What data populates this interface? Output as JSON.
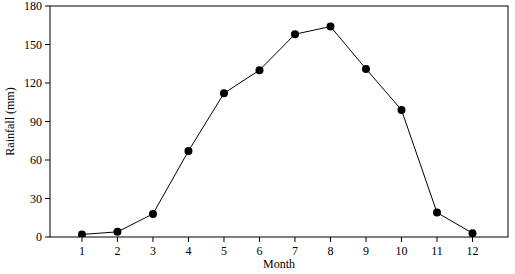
{
  "chart_data": {
    "type": "line",
    "x_label": "Month",
    "y_label": "Rainfall (mm)",
    "x": [
      1,
      2,
      3,
      4,
      5,
      6,
      7,
      8,
      9,
      10,
      11,
      12
    ],
    "values": [
      2,
      4,
      18,
      67,
      112,
      130,
      158,
      164,
      131,
      99,
      19,
      3
    ],
    "xlim": [
      0.1,
      13
    ],
    "xticks": [
      1,
      2,
      3,
      4,
      5,
      6,
      7,
      8,
      9,
      10,
      11,
      12
    ],
    "ylim": [
      0,
      180
    ],
    "yticks": [
      0,
      30,
      60,
      90,
      120,
      150,
      180
    ],
    "color": "#000000",
    "marker": "circle",
    "grid": false
  }
}
